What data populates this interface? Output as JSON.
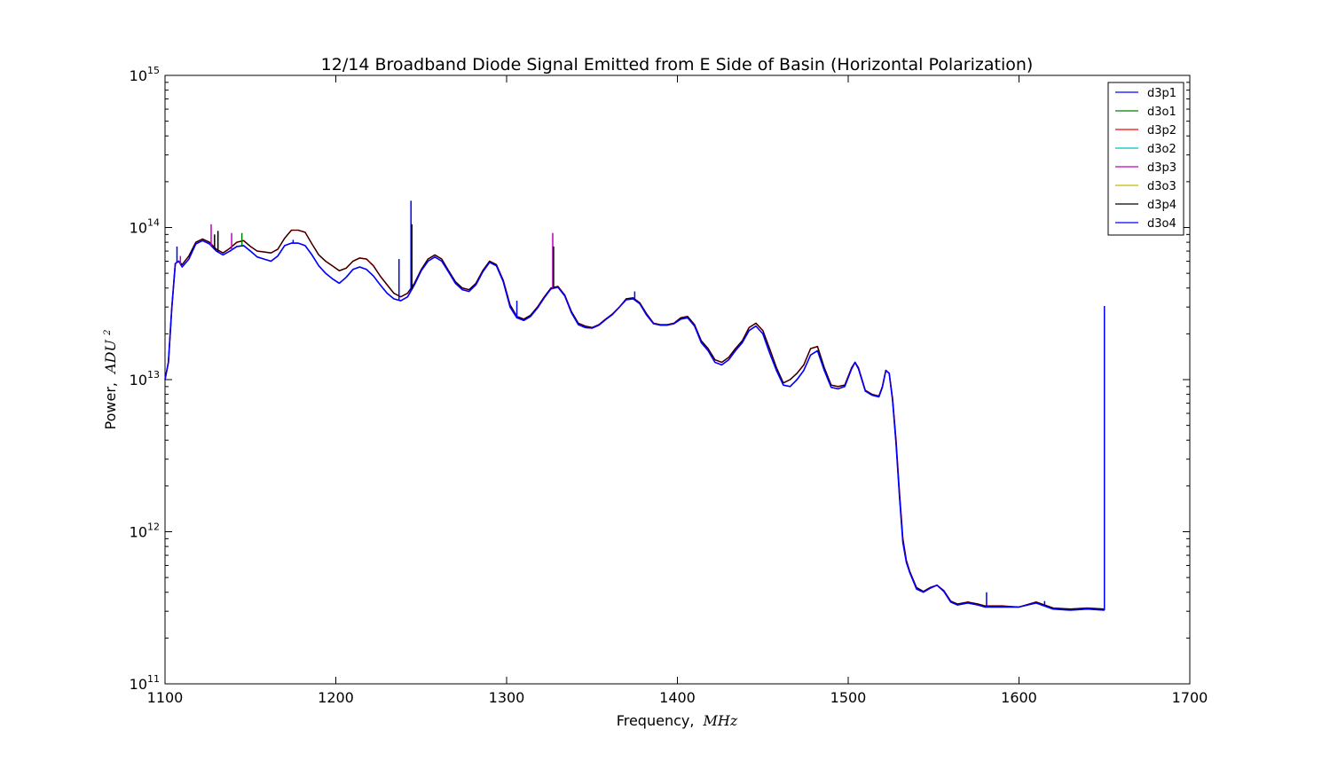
{
  "chart_data": {
    "type": "line",
    "title": "12/14 Broadband Diode Signal Emitted from E Side of Basin (Horizontal Polarization)",
    "xlabel": "Frequency,",
    "xlabel_unit": "MHz",
    "ylabel": "Power,",
    "ylabel_unit": "ADU",
    "ylabel_unit_exp": "2",
    "xlim": [
      1100,
      1700
    ],
    "ylim": [
      100000000000.0,
      1000000000000000.0
    ],
    "yscale": "log",
    "x_ticks": [
      "1100",
      "1200",
      "1300",
      "1400",
      "1500",
      "1600",
      "1700"
    ],
    "y_ticks": [
      {
        "base": "10",
        "exp": "11"
      },
      {
        "base": "10",
        "exp": "12"
      },
      {
        "base": "10",
        "exp": "13"
      },
      {
        "base": "10",
        "exp": "14"
      },
      {
        "base": "10",
        "exp": "15"
      }
    ],
    "legend_position": "top-right",
    "colors": {
      "d3p1": "#0000ff",
      "d3o1": "#008000",
      "d3p2": "#ff0000",
      "d3o2": "#00bfbf",
      "d3p3": "#bf00bf",
      "d3o3": "#bfbf00",
      "d3p4": "#000000",
      "d3o4": "#0000ff"
    },
    "series": [
      {
        "name": "d3p1",
        "color": "#0000ff"
      },
      {
        "name": "d3o1",
        "color": "#008000"
      },
      {
        "name": "d3p2",
        "color": "#ff0000"
      },
      {
        "name": "d3o2",
        "color": "#00bfbf"
      },
      {
        "name": "d3p3",
        "color": "#bf00bf"
      },
      {
        "name": "d3o3",
        "color": "#bfbf00"
      },
      {
        "name": "d3p4",
        "color": "#000000"
      },
      {
        "name": "d3o4",
        "color": "#0000ff"
      }
    ],
    "curve_upper": {
      "x": [
        1100,
        1102,
        1104,
        1106,
        1108,
        1110,
        1114,
        1118,
        1122,
        1126,
        1130,
        1134,
        1138,
        1142,
        1146,
        1150,
        1154,
        1158,
        1162,
        1166,
        1170,
        1174,
        1178,
        1182,
        1186,
        1190,
        1194,
        1198,
        1202,
        1206,
        1210,
        1214,
        1218,
        1222,
        1226,
        1230,
        1234,
        1238,
        1242,
        1246,
        1250,
        1254,
        1258,
        1262,
        1266,
        1270,
        1274,
        1278,
        1282,
        1286,
        1290,
        1294,
        1298,
        1302,
        1306,
        1310,
        1314,
        1318,
        1322,
        1326,
        1330,
        1334,
        1338,
        1342,
        1346,
        1350,
        1354,
        1358,
        1362,
        1366,
        1370,
        1374,
        1378,
        1382,
        1386,
        1390,
        1394,
        1398,
        1402,
        1406,
        1410,
        1414,
        1418,
        1422,
        1426,
        1430,
        1434,
        1438,
        1442,
        1446,
        1450,
        1454,
        1458,
        1462,
        1466,
        1470,
        1474,
        1478,
        1482,
        1486,
        1490,
        1494,
        1498,
        1502,
        1504,
        1506,
        1510,
        1514,
        1518,
        1520,
        1522,
        1524,
        1526,
        1528,
        1530,
        1532,
        1534,
        1536,
        1540,
        1544,
        1548,
        1552,
        1556,
        1560,
        1564,
        1570,
        1576,
        1580,
        1590,
        1600,
        1610,
        1620,
        1630,
        1640,
        1650
      ],
      "y": [
        10000000000000.0,
        13000000000000.0,
        30000000000000.0,
        58000000000000.0,
        60000000000000.0,
        57000000000000.0,
        65000000000000.0,
        80000000000000.0,
        84000000000000.0,
        80000000000000.0,
        72000000000000.0,
        68000000000000.0,
        73000000000000.0,
        80000000000000.0,
        82000000000000.0,
        75000000000000.0,
        70000000000000.0,
        69000000000000.0,
        68000000000000.0,
        72000000000000.0,
        85000000000000.0,
        96000000000000.0,
        96000000000000.0,
        93000000000000.0,
        78000000000000.0,
        66000000000000.0,
        60000000000000.0,
        56000000000000.0,
        52000000000000.0,
        54000000000000.0,
        60000000000000.0,
        63000000000000.0,
        62000000000000.0,
        56000000000000.0,
        48000000000000.0,
        42000000000000.0,
        37000000000000.0,
        35000000000000.0,
        37000000000000.0,
        43000000000000.0,
        53000000000000.0,
        62000000000000.0,
        66000000000000.0,
        62000000000000.0,
        52000000000000.0,
        44000000000000.0,
        40000000000000.0,
        39000000000000.0,
        43000000000000.0,
        52000000000000.0,
        60000000000000.0,
        57000000000000.0,
        45000000000000.0,
        31000000000000.0,
        26000000000000.0,
        25000000000000.0,
        26500000000000.0,
        30000000000000.0,
        35000000000000.0,
        40000000000000.0,
        41000000000000.0,
        36000000000000.0,
        28000000000000.0,
        23500000000000.0,
        22500000000000.0,
        22000000000000.0,
        23000000000000.0,
        25000000000000.0,
        27000000000000.0,
        30000000000000.0,
        34000000000000.0,
        34500000000000.0,
        32000000000000.0,
        27000000000000.0,
        23500000000000.0,
        23000000000000.0,
        23000000000000.0,
        23500000000000.0,
        25500000000000.0,
        26000000000000.0,
        23000000000000.0,
        18000000000000.0,
        16000000000000.0,
        13500000000000.0,
        13000000000000.0,
        14000000000000.0,
        16000000000000.0,
        18000000000000.0,
        22000000000000.0,
        23500000000000.0,
        21000000000000.0,
        16000000000000.0,
        12000000000000.0,
        9500000000000.0,
        10000000000000.0,
        11000000000000.0,
        12500000000000.0,
        16000000000000.0,
        16500000000000.0,
        12000000000000.0,
        9200000000000.0,
        9000000000000.0,
        9200000000000.0,
        12000000000000.0,
        13000000000000.0,
        12000000000000.0,
        8500000000000.0,
        8000000000000.0,
        7800000000000.0,
        9000000000000.0,
        11500000000000.0,
        11000000000000.0,
        7500000000000.0,
        4000000000000.0,
        1800000000000.0,
        900000000000.0,
        650000000000.0,
        550000000000.0,
        430000000000.0,
        405000000000.0,
        430000000000.0,
        445000000000.0,
        410000000000.0,
        350000000000.0,
        335000000000.0,
        345000000000.0,
        335000000000.0,
        325000000000.0,
        325000000000.0,
        320000000000.0,
        345000000000.0,
        315000000000.0,
        310000000000.0,
        315000000000.0,
        310000000000.0
      ]
    },
    "curve_lower": {
      "x": [
        1100,
        1102,
        1104,
        1106,
        1108,
        1110,
        1114,
        1118,
        1122,
        1126,
        1130,
        1134,
        1138,
        1142,
        1146,
        1150,
        1154,
        1158,
        1162,
        1166,
        1170,
        1174,
        1178,
        1182,
        1186,
        1190,
        1194,
        1198,
        1202,
        1206,
        1210,
        1214,
        1218,
        1222,
        1226,
        1230,
        1234,
        1238,
        1242,
        1246,
        1250,
        1254,
        1258,
        1262,
        1266,
        1270,
        1274,
        1278,
        1282,
        1286,
        1290,
        1294,
        1298,
        1302,
        1306,
        1310,
        1314,
        1318,
        1322,
        1326,
        1330,
        1334,
        1338,
        1342,
        1346,
        1350,
        1354,
        1358,
        1362,
        1366,
        1370,
        1374,
        1378,
        1382,
        1386,
        1390,
        1394,
        1398,
        1402,
        1406,
        1410,
        1414,
        1418,
        1422,
        1426,
        1430,
        1434,
        1438,
        1442,
        1446,
        1450,
        1454,
        1458,
        1462,
        1466,
        1470,
        1474,
        1478,
        1482,
        1486,
        1490,
        1494,
        1498,
        1502,
        1504,
        1506,
        1510,
        1514,
        1518,
        1520,
        1522,
        1524,
        1526,
        1528,
        1530,
        1532,
        1534,
        1536,
        1540,
        1544,
        1548,
        1552,
        1556,
        1560,
        1564,
        1570,
        1576,
        1580,
        1590,
        1600,
        1610,
        1620,
        1630,
        1640,
        1650
      ],
      "y": [
        10000000000000.0,
        13000000000000.0,
        30000000000000.0,
        58000000000000.0,
        60000000000000.0,
        55000000000000.0,
        62000000000000.0,
        78000000000000.0,
        82000000000000.0,
        78000000000000.0,
        70000000000000.0,
        66000000000000.0,
        70000000000000.0,
        75000000000000.0,
        76000000000000.0,
        70000000000000.0,
        64000000000000.0,
        62000000000000.0,
        60000000000000.0,
        65000000000000.0,
        76000000000000.0,
        79000000000000.0,
        79000000000000.0,
        76000000000000.0,
        66000000000000.0,
        56000000000000.0,
        50000000000000.0,
        46000000000000.0,
        43000000000000.0,
        47000000000000.0,
        53000000000000.0,
        55000000000000.0,
        53000000000000.0,
        48000000000000.0,
        42000000000000.0,
        37000000000000.0,
        34000000000000.0,
        33000000000000.0,
        35000000000000.0,
        42000000000000.0,
        52000000000000.0,
        60000000000000.0,
        64000000000000.0,
        60000000000000.0,
        51000000000000.0,
        43000000000000.0,
        39000000000000.0,
        38000000000000.0,
        42000000000000.0,
        51000000000000.0,
        59000000000000.0,
        56000000000000.0,
        44000000000000.0,
        30000000000000.0,
        25500000000000.0,
        24500000000000.0,
        26000000000000.0,
        29500000000000.0,
        34500000000000.0,
        39500000000000.0,
        40500000000000.0,
        35500000000000.0,
        27500000000000.0,
        23000000000000.0,
        22000000000000.0,
        21800000000000.0,
        22800000000000.0,
        24800000000000.0,
        26800000000000.0,
        30000000000000.0,
        33500000000000.0,
        34000000000000.0,
        31500000000000.0,
        26500000000000.0,
        23300000000000.0,
        22800000000000.0,
        22800000000000.0,
        23300000000000.0,
        25000000000000.0,
        25500000000000.0,
        22500000000000.0,
        17500000000000.0,
        15500000000000.0,
        13000000000000.0,
        12500000000000.0,
        13500000000000.0,
        15500000000000.0,
        17500000000000.0,
        21000000000000.0,
        22500000000000.0,
        20000000000000.0,
        15000000000000.0,
        11500000000000.0,
        9200000000000.0,
        9000000000000.0,
        10000000000000.0,
        11500000000000.0,
        14500000000000.0,
        15500000000000.0,
        11500000000000.0,
        8900000000000.0,
        8700000000000.0,
        9000000000000.0,
        11800000000000.0,
        13000000000000.0,
        11800000000000.0,
        8400000000000.0,
        7900000000000.0,
        7700000000000.0,
        8900000000000.0,
        11500000000000.0,
        11000000000000.0,
        7300000000000.0,
        3800000000000.0,
        1700000000000.0,
        850000000000.0,
        630000000000.0,
        540000000000.0,
        420000000000.0,
        400000000000.0,
        425000000000.0,
        445000000000.0,
        405000000000.0,
        345000000000.0,
        330000000000.0,
        340000000000.0,
        330000000000.0,
        320000000000.0,
        320000000000.0,
        320000000000.0,
        340000000000.0,
        310000000000.0,
        305000000000.0,
        310000000000.0,
        305000000000.0
      ]
    },
    "spikes": [
      {
        "x": 1107,
        "y": 75000000000000.0,
        "color": "#0000ff"
      },
      {
        "x": 1109,
        "y": 65000000000000.0,
        "color": "#bf00bf"
      },
      {
        "x": 1127,
        "y": 105000000000000.0,
        "color": "#bf00bf"
      },
      {
        "x": 1129,
        "y": 90000000000000.0,
        "color": "#000000"
      },
      {
        "x": 1131,
        "y": 95000000000000.0,
        "color": "#000000"
      },
      {
        "x": 1139,
        "y": 92000000000000.0,
        "color": "#bf00bf"
      },
      {
        "x": 1145,
        "y": 92000000000000.0,
        "color": "#008000"
      },
      {
        "x": 1175,
        "y": 83000000000000.0,
        "color": "#0000ff"
      },
      {
        "x": 1237,
        "y": 62000000000000.0,
        "color": "#0000ff"
      },
      {
        "x": 1244,
        "y": 150000000000000.0,
        "color": "#0000ff"
      },
      {
        "x": 1244.5,
        "y": 105000000000000.0,
        "color": "#000000"
      },
      {
        "x": 1306,
        "y": 33000000000000.0,
        "color": "#0000ff"
      },
      {
        "x": 1327,
        "y": 92000000000000.0,
        "color": "#bf00bf"
      },
      {
        "x": 1327.5,
        "y": 75000000000000.0,
        "color": "#000000"
      },
      {
        "x": 1375,
        "y": 38000000000000.0,
        "color": "#0000ff"
      },
      {
        "x": 1581,
        "y": 400000000000.0,
        "color": "#0000ff"
      },
      {
        "x": 1615,
        "y": 350000000000.0,
        "color": "#0000ff"
      },
      {
        "x": 1650,
        "y": 30500000000000.0,
        "color": "#0000ff"
      }
    ]
  }
}
